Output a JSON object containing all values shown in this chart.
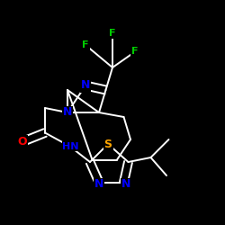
{
  "background_color": "#000000",
  "bond_color": "#ffffff",
  "atom_colors": {
    "N": "#0000ff",
    "O": "#ff0000",
    "S": "#ffa500",
    "F": "#00cc00"
  },
  "figsize": [
    2.5,
    2.5
  ],
  "dpi": 100,
  "lw": 1.4
}
